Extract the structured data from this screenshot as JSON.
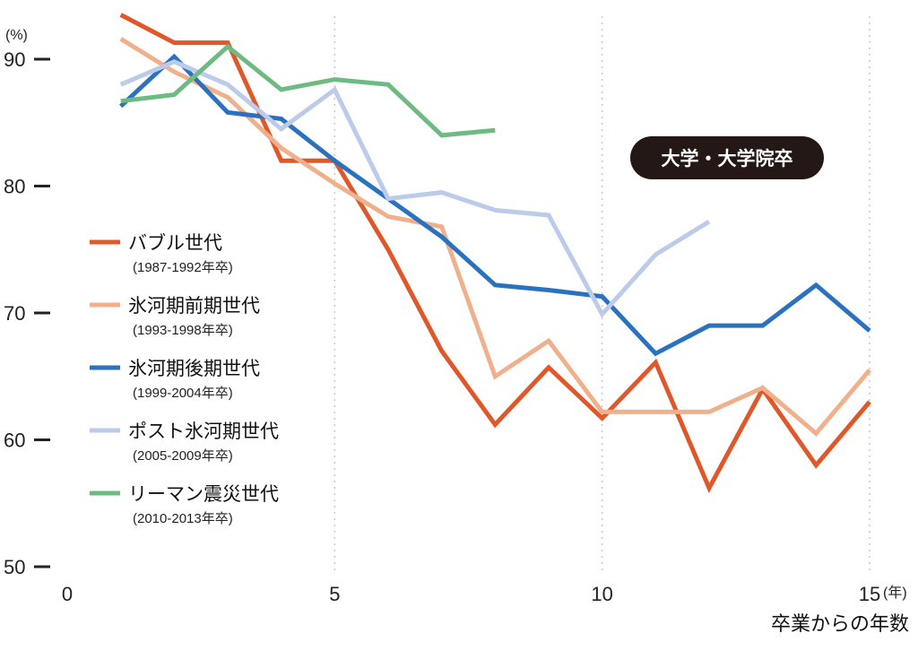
{
  "chart_data": {
    "type": "line",
    "y_unit": "(%)",
    "x_unit": "(年)",
    "xlabel": "卒業からの年数",
    "badge": "大学・大学院卒",
    "xlim": [
      0,
      15
    ],
    "ylim": [
      50,
      92
    ],
    "x_ticks": [
      0,
      5,
      10,
      15
    ],
    "y_ticks": [
      50,
      60,
      70,
      80,
      90
    ],
    "grid": "vertical-dotted",
    "legend_position": "left",
    "series": [
      {
        "name": "バブル世代",
        "period": "(1987-1992年卒)",
        "color": "#e0582a",
        "x": [
          1,
          2,
          3,
          4,
          5,
          6,
          7,
          8,
          9,
          10,
          11,
          12,
          13,
          14,
          15
        ],
        "y": [
          93.5,
          91.3,
          91.3,
          82,
          82,
          75,
          67,
          61.2,
          65.7,
          61.7,
          66.1,
          56.2,
          64,
          58,
          63
        ]
      },
      {
        "name": "氷河期前期世代",
        "period": "(1993-1998年卒)",
        "color": "#f0b08c",
        "x": [
          1,
          2,
          3,
          4,
          5,
          6,
          7,
          8,
          9,
          10,
          11,
          12,
          13,
          14,
          15
        ],
        "y": [
          91.6,
          89,
          87,
          83,
          80.2,
          77.6,
          76.8,
          65,
          67.8,
          62.2,
          62.2,
          62.2,
          64.1,
          60.5,
          65.5
        ]
      },
      {
        "name": "氷河期後期世代",
        "period": "(1999-2004年卒)",
        "color": "#2a72bf",
        "x": [
          1,
          2,
          3,
          4,
          5,
          6,
          7,
          8,
          9,
          10,
          11,
          12,
          13,
          14,
          15
        ],
        "y": [
          86.3,
          90.2,
          85.8,
          85.3,
          82,
          79,
          76,
          72.2,
          71.8,
          71.3,
          66.8,
          69,
          69,
          72.2,
          68.6
        ]
      },
      {
        "name": "ポスト氷河期世代",
        "period": "(2005-2009年卒)",
        "color": "#bccbe9",
        "x": [
          1,
          2,
          3,
          4,
          5,
          6,
          7,
          8,
          9,
          10,
          11,
          12
        ],
        "y": [
          88,
          89.8,
          88,
          84.5,
          87.6,
          79,
          79.5,
          78.1,
          77.7,
          69.9,
          74.6,
          77.2
        ]
      },
      {
        "name": "リーマン震災世代",
        "period": "(2010-2013年卒)",
        "color": "#6dbb82",
        "x": [
          1,
          2,
          3,
          4,
          5,
          6,
          7,
          8
        ],
        "y": [
          86.7,
          87.2,
          91,
          87.6,
          88.4,
          88,
          84,
          84.4
        ]
      }
    ]
  }
}
